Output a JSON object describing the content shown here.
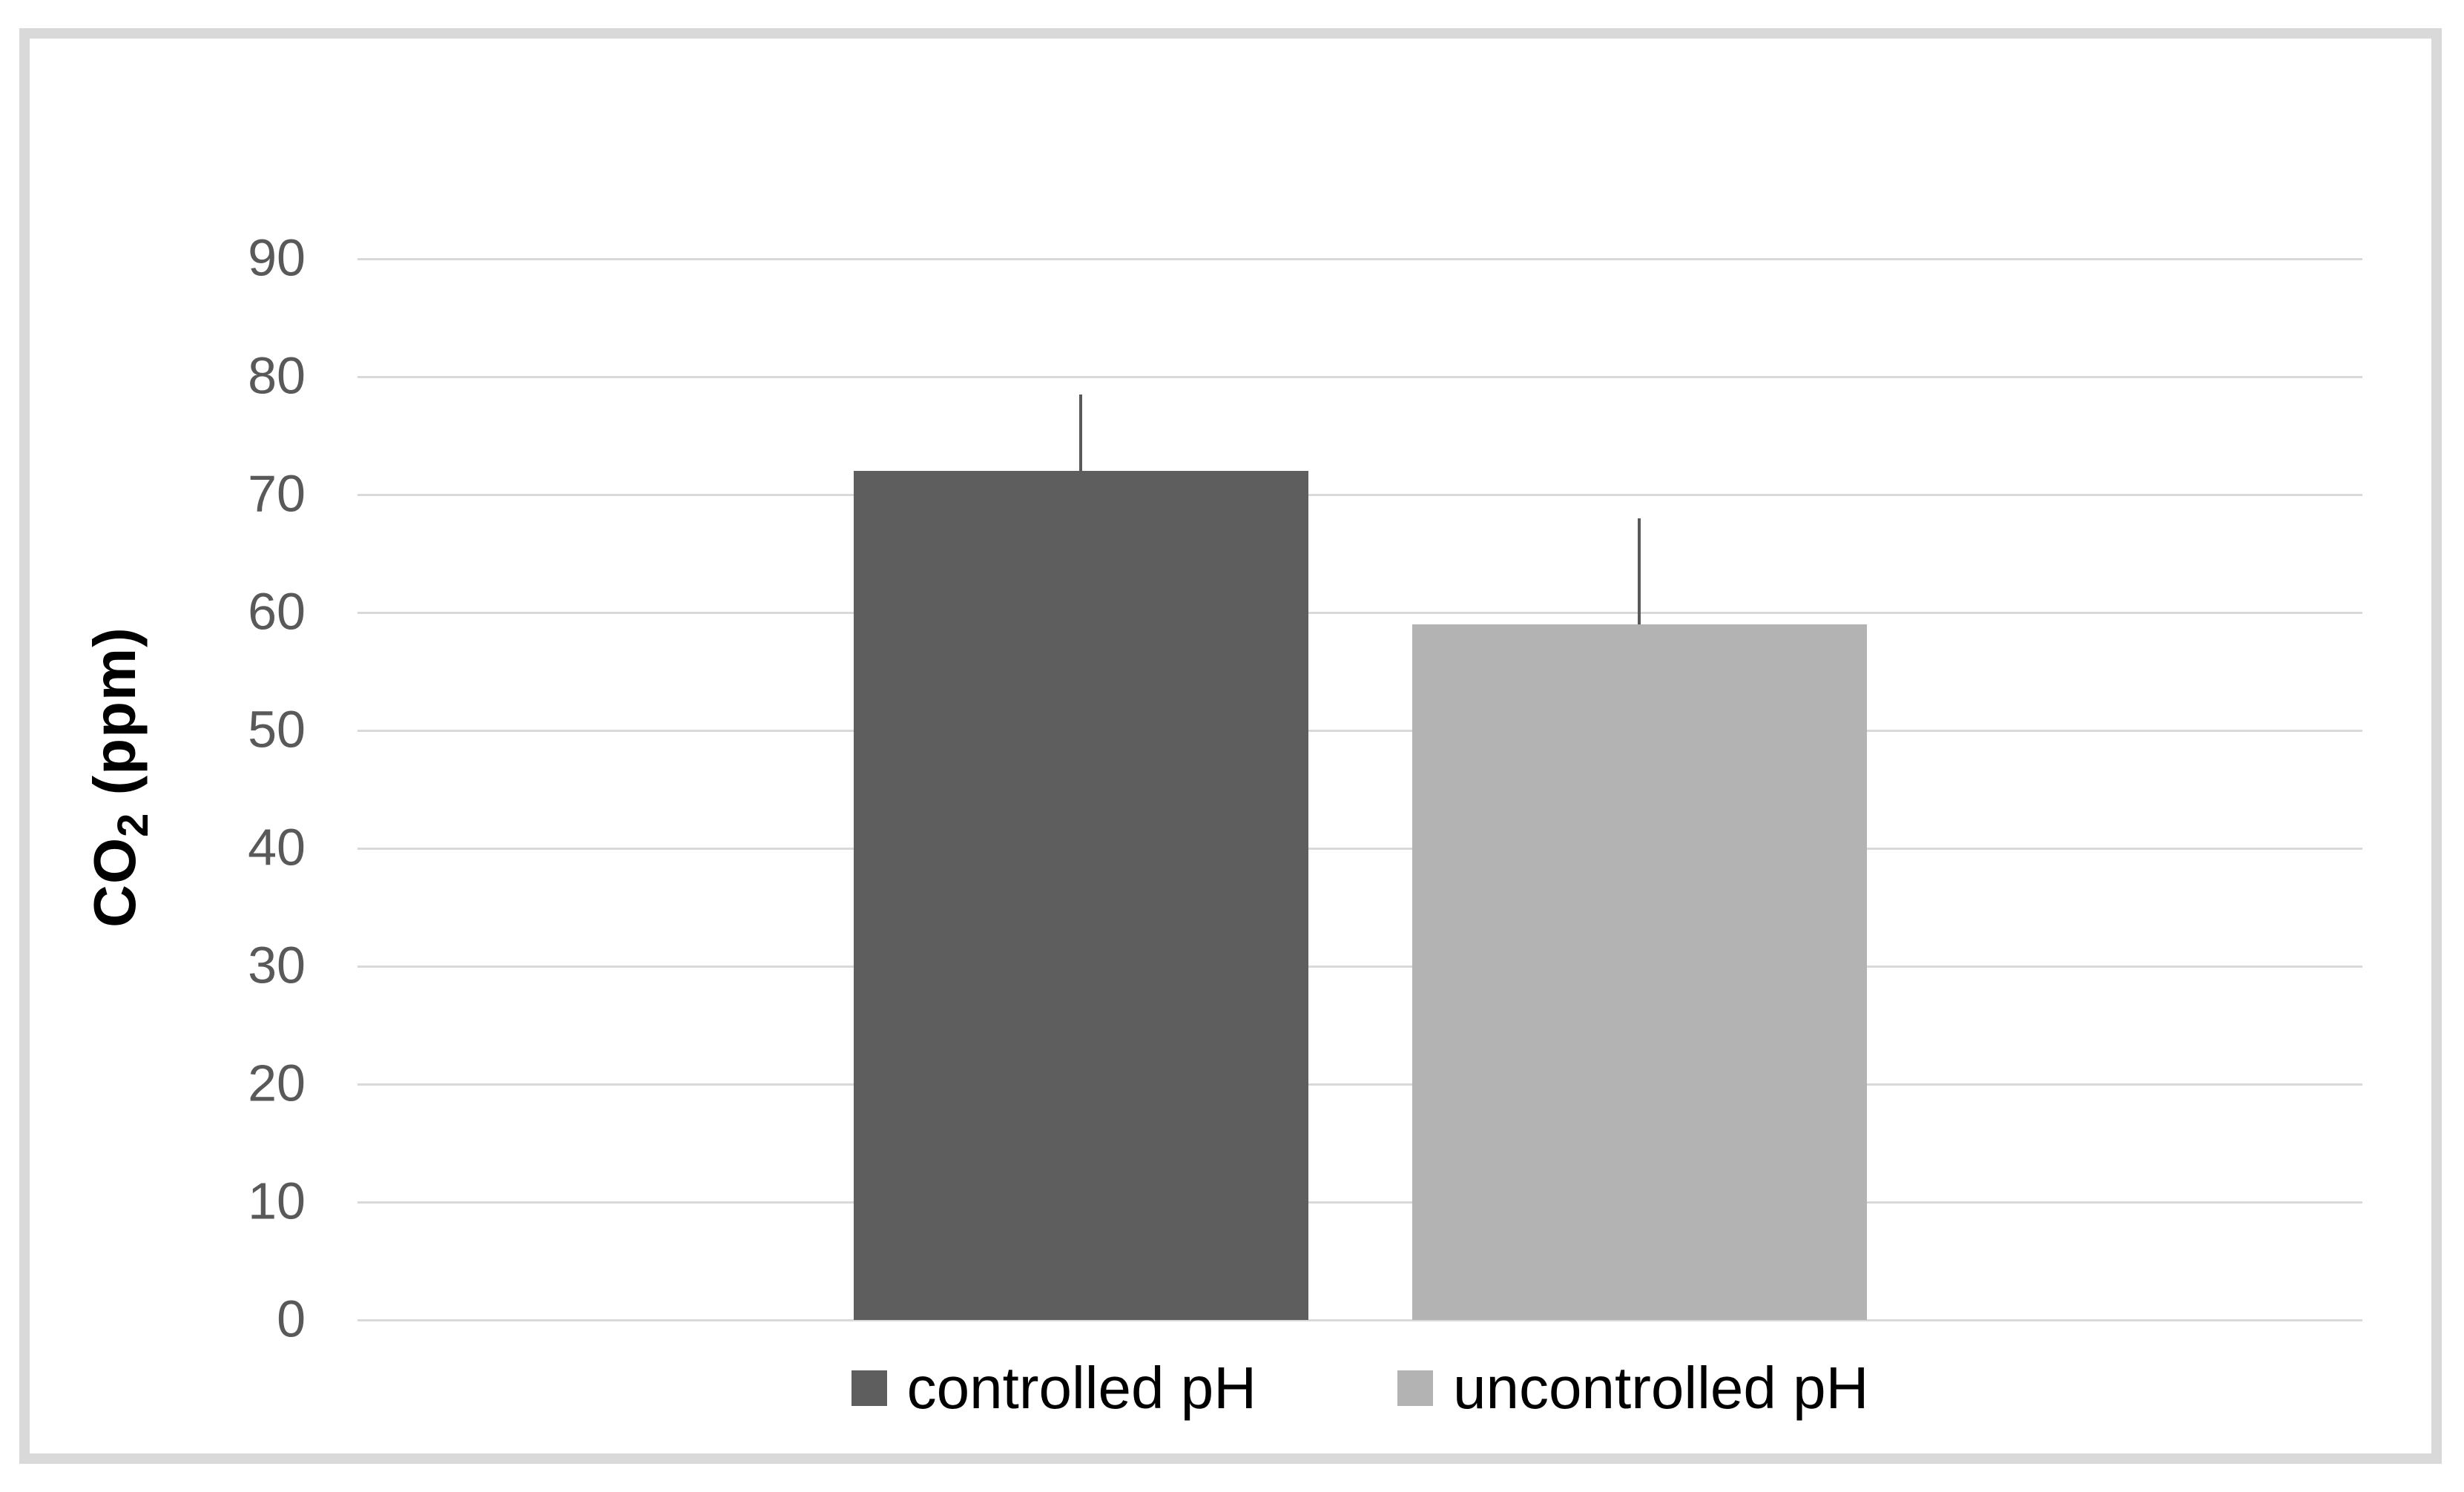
{
  "chart": {
    "ylabel_parts": {
      "main": "CO",
      "sub": "2",
      "rest": " (ppm)"
    }
  },
  "chart_data": {
    "type": "bar",
    "title": "",
    "categories": [
      ""
    ],
    "series": [
      {
        "name": "controlled pH",
        "values": [
          72
        ],
        "error_plus": [
          6.5
        ],
        "color": "#5e5e5e"
      },
      {
        "name": "uncontrolled pH",
        "values": [
          59
        ],
        "error_plus": [
          9
        ],
        "color": "#b3b3b3"
      }
    ],
    "ylabel": "CO2 (ppm)",
    "ylim": [
      0,
      90
    ],
    "yticks": [
      0,
      10,
      20,
      30,
      40,
      50,
      60,
      70,
      80,
      90
    ],
    "grid": true,
    "legend_position": "bottom",
    "error_bar_caps": false
  },
  "colors": {
    "background": "#ffffff",
    "frame_border": "#d9d9d9",
    "gridline": "#d9d9d9",
    "tick_label": "#595959",
    "error_bar": "#595959",
    "legend_text": "#000000"
  }
}
